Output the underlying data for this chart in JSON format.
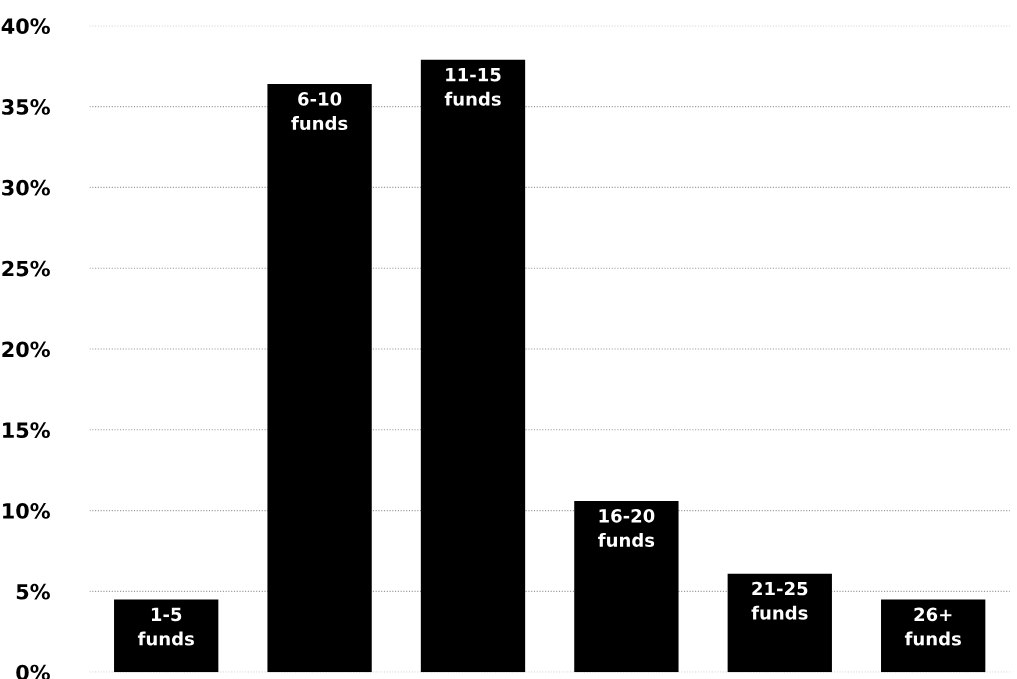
{
  "chart_data": {
    "type": "bar",
    "categories": [
      "1-5\nfunds",
      "6-10\nfunds",
      "11-15\nfunds",
      "16-20\nfunds",
      "21-25\nfunds",
      "26+\nfunds"
    ],
    "values": [
      4.5,
      36.4,
      37.9,
      10.6,
      6.1,
      4.5
    ],
    "color": "#000000",
    "ylim": [
      0,
      40
    ],
    "yticks": [
      {
        "value": 0,
        "label": "0%"
      },
      {
        "value": 5,
        "label": "5%"
      },
      {
        "value": 10,
        "label": "10%"
      },
      {
        "value": 15,
        "label": "15%"
      },
      {
        "value": 20,
        "label": "20%"
      },
      {
        "value": 25,
        "label": "25%"
      },
      {
        "value": 30,
        "label": "30%"
      },
      {
        "value": 35,
        "label": "35%"
      },
      {
        "value": 40,
        "label": "40%"
      }
    ],
    "grid": "y",
    "legend": false
  }
}
